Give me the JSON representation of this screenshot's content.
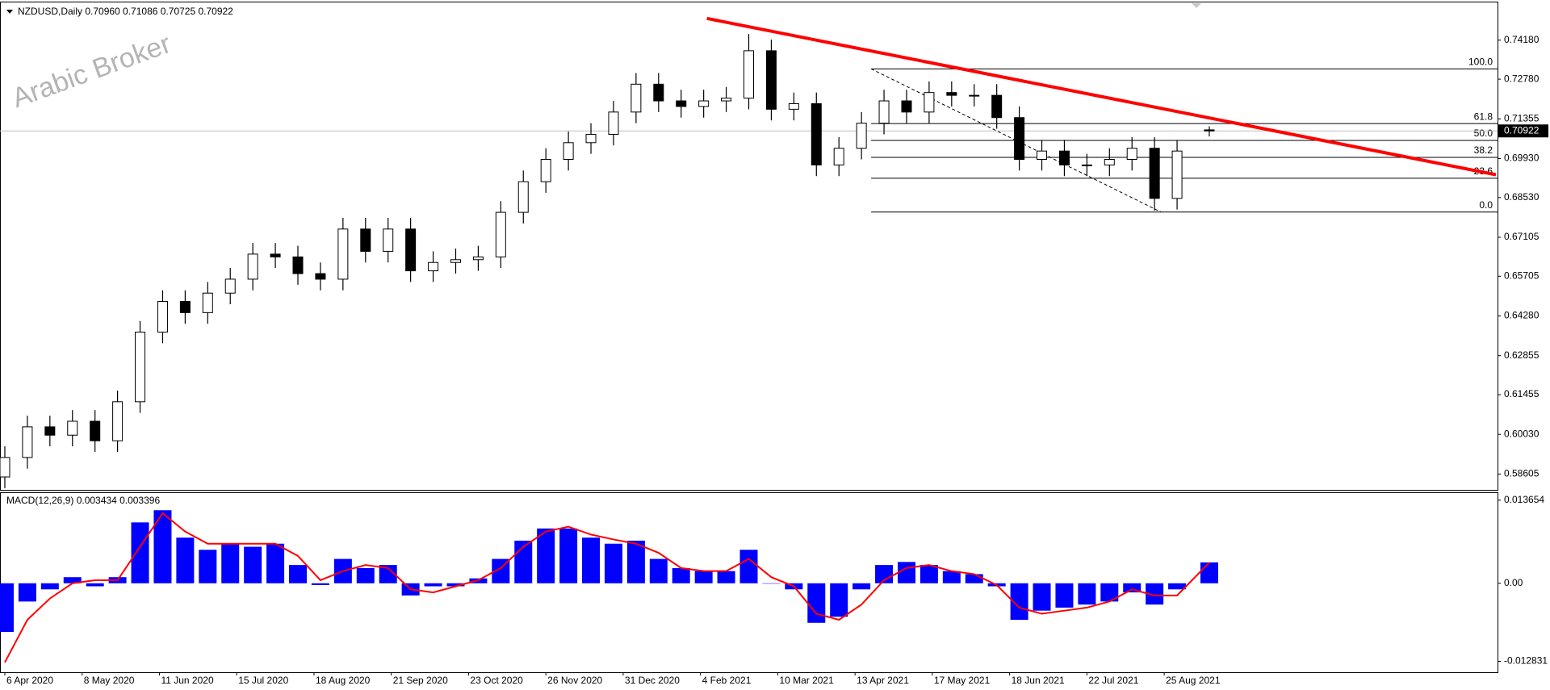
{
  "chart_data": [
    {
      "type": "candlestick",
      "title": "NZDUSD,Daily  0.70960 0.71086 0.70725 0.70922",
      "watermark": "Arabic Broker",
      "x": [
        0,
        7,
        14,
        21,
        28,
        35,
        42,
        49,
        56,
        63,
        70,
        77,
        84,
        91,
        98,
        105,
        112,
        119,
        126,
        133,
        140,
        147,
        154,
        161,
        168,
        175,
        182,
        189,
        196,
        203,
        210,
        217,
        224,
        231,
        238,
        245,
        252,
        259,
        266,
        273,
        280,
        287,
        294,
        301,
        308,
        315,
        322,
        329,
        336,
        343,
        350,
        357,
        364,
        374
      ],
      "open": [
        0.585,
        0.592,
        0.603,
        0.6,
        0.605,
        0.598,
        0.612,
        0.637,
        0.648,
        0.644,
        0.651,
        0.656,
        0.665,
        0.664,
        0.658,
        0.656,
        0.674,
        0.666,
        0.674,
        0.659,
        0.662,
        0.663,
        0.664,
        0.68,
        0.691,
        0.699,
        0.705,
        0.708,
        0.716,
        0.726,
        0.72,
        0.718,
        0.72,
        0.721,
        0.738,
        0.717,
        0.719,
        0.697,
        0.703,
        0.712,
        0.72,
        0.716,
        0.723,
        0.722,
        0.722,
        0.714,
        0.699,
        0.702,
        0.697,
        0.697,
        0.699,
        0.703,
        0.685,
        0.7096
      ],
      "high": [
        0.596,
        0.607,
        0.607,
        0.609,
        0.609,
        0.616,
        0.641,
        0.652,
        0.652,
        0.655,
        0.66,
        0.669,
        0.669,
        0.668,
        0.662,
        0.678,
        0.678,
        0.678,
        0.678,
        0.666,
        0.667,
        0.668,
        0.684,
        0.695,
        0.703,
        0.709,
        0.712,
        0.72,
        0.73,
        0.73,
        0.724,
        0.724,
        0.725,
        0.744,
        0.742,
        0.723,
        0.723,
        0.707,
        0.716,
        0.724,
        0.724,
        0.727,
        0.727,
        0.726,
        0.726,
        0.718,
        0.706,
        0.706,
        0.701,
        0.703,
        0.707,
        0.707,
        0.706,
        0.71086
      ],
      "low": [
        0.581,
        0.588,
        0.596,
        0.596,
        0.594,
        0.594,
        0.608,
        0.633,
        0.64,
        0.64,
        0.647,
        0.652,
        0.66,
        0.654,
        0.652,
        0.652,
        0.662,
        0.662,
        0.655,
        0.655,
        0.658,
        0.659,
        0.66,
        0.676,
        0.687,
        0.695,
        0.701,
        0.704,
        0.712,
        0.716,
        0.714,
        0.714,
        0.716,
        0.717,
        0.713,
        0.713,
        0.693,
        0.693,
        0.699,
        0.708,
        0.712,
        0.712,
        0.718,
        0.718,
        0.71,
        0.695,
        0.695,
        0.693,
        0.693,
        0.693,
        0.695,
        0.6806,
        0.681,
        0.70725
      ],
      "close": [
        0.592,
        0.603,
        0.6,
        0.605,
        0.598,
        0.612,
        0.637,
        0.648,
        0.644,
        0.651,
        0.656,
        0.665,
        0.664,
        0.658,
        0.656,
        0.674,
        0.666,
        0.674,
        0.659,
        0.662,
        0.663,
        0.664,
        0.68,
        0.691,
        0.699,
        0.705,
        0.708,
        0.716,
        0.726,
        0.72,
        0.718,
        0.72,
        0.721,
        0.738,
        0.717,
        0.719,
        0.697,
        0.703,
        0.712,
        0.72,
        0.716,
        0.723,
        0.722,
        0.722,
        0.714,
        0.699,
        0.702,
        0.697,
        0.697,
        0.699,
        0.703,
        0.685,
        0.702,
        0.70922
      ],
      "up_color": "#ffffff",
      "down_color": "#000000",
      "line_color": "#000000",
      "last_price": 0.70922,
      "xlim": [
        -1.5,
        463.5
      ],
      "ylim": [
        0.58037,
        0.75564
      ],
      "yticks": [
        {
          "value": 0.7418,
          "label": "0.74180"
        },
        {
          "value": 0.7278,
          "label": "0.72780"
        },
        0.71355,
        {
          "value": 0.6993,
          "label": "0.69930"
        },
        {
          "value": 0.6853,
          "label": "0.68530"
        },
        0.67105,
        0.65705,
        {
          "value": 0.6428,
          "label": "0.64280"
        },
        0.62855,
        0.61455,
        {
          "value": 0.6003,
          "label": "0.60030"
        },
        0.58605
      ],
      "trendline": {
        "x": [
          218,
          463
        ],
        "y": [
          0.7496,
          0.6935
        ],
        "color": "#ff0000"
      },
      "fib": {
        "x": [
          269,
          359
        ],
        "high": 0.7315,
        "low": 0.6801,
        "levels": [
          {
            "value": 100,
            "label": "100.0"
          },
          61.8,
          {
            "value": 50,
            "label": "50.0"
          },
          38.2,
          23.6,
          {
            "value": 0,
            "label": "0.0"
          }
        ]
      }
    },
    {
      "type": "macd",
      "title": "MACD(12,26,9) 0.003434 0.003396",
      "histogram": [
        -0.008,
        -0.003,
        -0.001,
        0.001,
        -0.0005,
        0.001,
        0.01,
        0.012,
        0.0075,
        0.0055,
        0.0065,
        0.006,
        0.0065,
        0.003,
        -0.0003,
        0.004,
        0.0025,
        0.003,
        -0.002,
        -0.0005,
        -0.0005,
        0.0008,
        0.004,
        0.007,
        0.009,
        0.009,
        0.0075,
        0.0065,
        0.007,
        0.004,
        0.0025,
        0.002,
        0.002,
        0.0055,
        0.0,
        -0.001,
        -0.0065,
        -0.0055,
        -0.001,
        0.003,
        0.0035,
        0.003,
        0.002,
        0.0015,
        -0.0005,
        -0.006,
        -0.0045,
        -0.004,
        -0.0035,
        -0.003,
        -0.0015,
        -0.0035,
        -0.001,
        0.003434
      ],
      "signal": [
        -0.013,
        -0.006,
        -0.0025,
        0.0,
        0.0005,
        0.0005,
        0.006,
        0.0115,
        0.0085,
        0.0065,
        0.0065,
        0.0065,
        0.0065,
        0.0045,
        0.0005,
        0.002,
        0.003,
        0.0025,
        -0.001,
        -0.0015,
        -0.0005,
        0.0005,
        0.0025,
        0.006,
        0.0085,
        0.0093,
        0.008,
        0.0072,
        0.0065,
        0.005,
        0.0025,
        0.002,
        0.002,
        0.004,
        0.001,
        -0.0005,
        -0.005,
        -0.006,
        -0.0035,
        0.0005,
        0.0025,
        0.003,
        0.002,
        0.0015,
        -0.0003,
        -0.004,
        -0.005,
        -0.0045,
        -0.004,
        -0.003,
        -0.001,
        -0.002,
        -0.002,
        0.003396
      ],
      "histogram_color": "#0000ff",
      "signal_color": "#ff0000",
      "xlim": [
        -1.5,
        463.5
      ],
      "ylim": [
        -0.01462,
        0.01495
      ],
      "yticks": [
        0.013654,
        {
          "value": 0,
          "label": "0.00"
        },
        -0.012831
      ],
      "xticks": [
        {
          "value": 0,
          "label": "6 Apr 2020"
        },
        {
          "value": 24,
          "label": "8 May 2020"
        },
        {
          "value": 48,
          "label": "11 Jun 2020"
        },
        {
          "value": 72,
          "label": "15 Jul 2020"
        },
        {
          "value": 96,
          "label": "18 Aug 2020"
        },
        {
          "value": 120,
          "label": "21 Sep 2020"
        },
        {
          "value": 144,
          "label": "23 Oct 2020"
        },
        {
          "value": 168,
          "label": "26 Nov 2020"
        },
        {
          "value": 192,
          "label": "31 Dec 2020"
        },
        {
          "value": 216,
          "label": "4 Feb 2021"
        },
        {
          "value": 240,
          "label": "10 Mar 2021"
        },
        {
          "value": 264,
          "label": "13 Apr 2021"
        },
        {
          "value": 288,
          "label": "17 May 2021"
        },
        {
          "value": 312,
          "label": "18 Jun 2021"
        },
        {
          "value": 336,
          "label": "22 Jul 2021"
        },
        {
          "value": 360,
          "label": "25 Aug 2021"
        }
      ]
    }
  ]
}
